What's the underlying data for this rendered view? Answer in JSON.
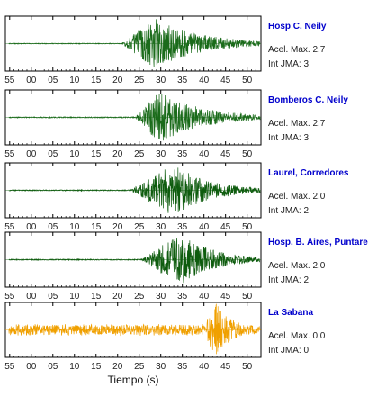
{
  "chart_data": {
    "type": "line",
    "xlabel": "Tiempo (s)",
    "x_tick_labels": [
      "55",
      "00",
      "05",
      "10",
      "15",
      "20",
      "25",
      "30",
      "35",
      "40",
      "45",
      "50"
    ],
    "info_labels": {
      "accel": "Acel. Max.",
      "jma": "Int JMA:"
    },
    "station_label_color": "#0000cc",
    "panels": [
      {
        "station": "Hosp C. Neily",
        "accel_max": "2.7",
        "int_jma": "3",
        "color": "#1a6b1a",
        "onset": 21,
        "peak": 28.5,
        "end": 52,
        "amp": 1.0,
        "noise": 0.015
      },
      {
        "station": "Bomberos C. Neily",
        "accel_max": "2.7",
        "int_jma": "3",
        "color": "#1a6b1a",
        "onset": 24,
        "peak": 29.5,
        "end": 52,
        "amp": 1.0,
        "noise": 0.02
      },
      {
        "station": "Laurel, Corredores",
        "accel_max": "2.0",
        "int_jma": "2",
        "color": "#0e5c0e",
        "onset": 23,
        "peak": 33,
        "end": 52,
        "amp": 1.0,
        "noise": 0.02
      },
      {
        "station": "Hosp. B. Aires, Puntare",
        "accel_max": "2.0",
        "int_jma": "2",
        "color": "#0e5c0e",
        "onset": 25.5,
        "peak": 34.5,
        "end": 52,
        "amp": 1.0,
        "noise": 0.02
      },
      {
        "station": "La Sabana",
        "accel_max": "0.0",
        "int_jma": "0",
        "color": "#f0a000",
        "onset": 40,
        "peak": 43,
        "end": 52,
        "amp": 1.0,
        "noise": 0.18
      }
    ]
  }
}
